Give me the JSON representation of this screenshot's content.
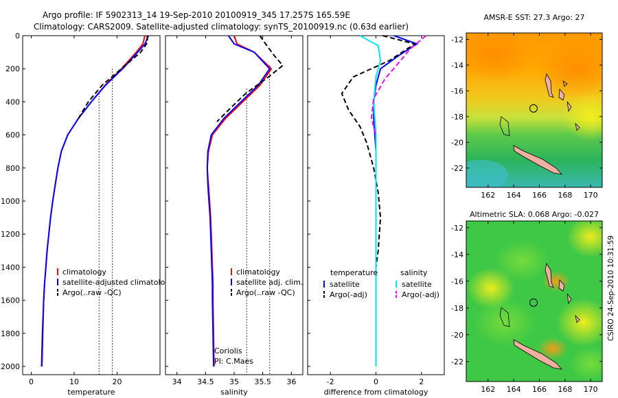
{
  "figure": {
    "title_line1": "Argo profile: IF 5902313_14 19-Sep-2010 20100919_345 17.257S 165.59E",
    "title_line2": "Climatology: CARS2009. Satellite-adjusted climatology: synTS_20100919.nc (0.63d earlier)",
    "institution_note": "CSIRO 24-Sep-2010 10:31:59",
    "colors": {
      "climatology": "#ff0000",
      "satellite": "#0000ff",
      "argo": "#000000",
      "salinity_satellite": "#00e5ee",
      "salinity_argo": "#ff00ff"
    }
  },
  "chart_data": [
    {
      "type": "line",
      "panel": "temperature",
      "xlabel": "temperature",
      "ylabel": "",
      "xlim": [
        -2,
        30
      ],
      "ylim": [
        2050,
        0
      ],
      "y_reversed": true,
      "xticks": [
        0,
        10,
        20
      ],
      "yticks": [
        0,
        200,
        400,
        600,
        800,
        1000,
        1200,
        1400,
        1600,
        1800,
        2000
      ],
      "legend": [
        "climatology",
        "satellite-adjusted climatology",
        "Argo(..raw -QC)"
      ],
      "legend_placement": "lower-right",
      "series": [
        {
          "name": "climatology",
          "color_key": "climatology",
          "style": "solid",
          "x": [
            26.5,
            26.0,
            24.5,
            21.0,
            17.2,
            14.0,
            11.0,
            8.5,
            7.0,
            6.2,
            5.6,
            5.0,
            4.5,
            4.1,
            3.7,
            3.4,
            3.1,
            2.9,
            2.7,
            2.5
          ],
          "y": [
            0,
            50,
            100,
            200,
            300,
            400,
            500,
            600,
            700,
            800,
            900,
            1000,
            1100,
            1200,
            1300,
            1400,
            1500,
            1600,
            1800,
            2000
          ]
        },
        {
          "name": "satellite-adjusted climatology",
          "color_key": "satellite",
          "style": "solid",
          "x": [
            27.3,
            26.5,
            24.8,
            21.3,
            17.3,
            14.0,
            11.0,
            8.5,
            7.0,
            6.2,
            5.6,
            5.0,
            4.5,
            4.1,
            3.7,
            3.4,
            3.1,
            2.9,
            2.6,
            2.4
          ],
          "y": [
            0,
            50,
            100,
            200,
            300,
            400,
            500,
            600,
            700,
            800,
            900,
            1000,
            1100,
            1200,
            1300,
            1400,
            1500,
            1600,
            1800,
            2000
          ]
        },
        {
          "name": "Argo(..raw -QC)",
          "color_key": "argo",
          "style": "dashed",
          "x": [
            27.0,
            27.1,
            25.5,
            21.0,
            16.5,
            13.3,
            11.0
          ],
          "y": [
            0,
            40,
            100,
            200,
            300,
            400,
            500
          ]
        }
      ],
      "reference_lines": [
        {
          "axis": "x",
          "value": 15.8,
          "style": "dotted",
          "y_from": 350,
          "y_to": 2050
        },
        {
          "axis": "x",
          "value": 18.9,
          "style": "dotted",
          "y_from": 200,
          "y_to": 2050
        }
      ],
      "reference_labels": []
    },
    {
      "type": "line",
      "panel": "salinity",
      "xlabel": "salinity",
      "xlim": [
        33.8,
        36.2
      ],
      "ylim": [
        2050,
        0
      ],
      "y_reversed": true,
      "xticks": [
        34,
        34.5,
        35,
        35.5,
        36
      ],
      "legend": [
        "climatology",
        "satellite adj. clim.",
        "Argo(..raw -QC)"
      ],
      "legend_placement": "lower-right",
      "series": [
        {
          "name": "climatology",
          "color_key": "climatology",
          "style": "solid",
          "x": [
            35.0,
            35.05,
            35.35,
            35.65,
            35.45,
            35.15,
            34.85,
            34.62,
            34.55,
            34.53,
            34.55,
            34.57,
            34.59,
            34.6,
            34.61,
            34.62,
            34.63,
            34.63,
            34.64,
            34.65
          ],
          "y": [
            0,
            50,
            100,
            200,
            300,
            400,
            500,
            600,
            700,
            800,
            900,
            1000,
            1100,
            1200,
            1300,
            1400,
            1500,
            1600,
            1800,
            2000
          ]
        },
        {
          "name": "satellite adj. clim.",
          "color_key": "satellite",
          "style": "solid",
          "x": [
            34.9,
            35.0,
            35.35,
            35.62,
            35.42,
            35.12,
            34.82,
            34.6,
            34.54,
            34.53,
            34.54,
            34.56,
            34.58,
            34.59,
            34.6,
            34.61,
            34.62,
            34.62,
            34.63,
            34.64
          ],
          "y": [
            0,
            50,
            100,
            200,
            300,
            400,
            500,
            600,
            700,
            800,
            900,
            1000,
            1100,
            1200,
            1300,
            1400,
            1500,
            1600,
            1800,
            2000
          ]
        },
        {
          "name": "Argo(..raw -QC)",
          "color_key": "argo",
          "style": "dashed",
          "x": [
            35.45,
            35.55,
            35.7,
            35.85,
            35.6,
            35.2,
            34.9,
            34.7
          ],
          "y": [
            0,
            50,
            120,
            180,
            250,
            350,
            450,
            520
          ]
        }
      ],
      "reference_lines": [
        {
          "axis": "x",
          "value": 35.22,
          "style": "dotted",
          "y_from": 320,
          "y_to": 2050
        },
        {
          "axis": "x",
          "value": 35.62,
          "style": "dotted",
          "y_from": 180,
          "y_to": 2050
        }
      ],
      "reference_labels": [
        "Coriolis",
        "PI: C.Maes"
      ]
    },
    {
      "type": "line",
      "panel": "difference",
      "xlabel": "difference from climatology",
      "xlim": [
        -3,
        3
      ],
      "ylim": [
        2050,
        0
      ],
      "y_reversed": true,
      "xticks": [
        -2,
        0,
        2
      ],
      "legend_groups": [
        {
          "title": "temperature",
          "items": [
            "satellite",
            "Argo(-adj)"
          ]
        },
        {
          "title": "salinity",
          "items": [
            "satellite",
            "Argo(-adj)"
          ]
        }
      ],
      "series": [
        {
          "name": "temperature satellite",
          "color_key": "satellite",
          "style": "solid",
          "x": [
            0.8,
            1.8,
            1.0,
            0.2,
            0.0,
            -0.1,
            -0.1,
            0.0,
            0.0,
            0.0,
            0.0
          ],
          "y": [
            0,
            50,
            120,
            200,
            300,
            400,
            500,
            700,
            900,
            1400,
            2000
          ]
        },
        {
          "name": "temperature Argo(-adj)",
          "color_key": "argo",
          "style": "dashed",
          "x": [
            0.3,
            1.7,
            0.6,
            -1.0,
            -1.5,
            -1.2,
            -0.7,
            -0.4,
            -0.1,
            0.1,
            0.2,
            0.1,
            0.0
          ],
          "y": [
            0,
            50,
            150,
            250,
            350,
            450,
            550,
            650,
            800,
            950,
            1100,
            1300,
            1400
          ]
        },
        {
          "name": "salinity satellite",
          "color_key": "salinity_satellite",
          "style": "solid",
          "x": [
            -0.7,
            0.1,
            0.2,
            0.0,
            -0.1,
            0.0,
            0.0,
            0.0,
            0.0
          ],
          "y": [
            0,
            60,
            150,
            250,
            400,
            600,
            1000,
            1500,
            2000
          ]
        },
        {
          "name": "salinity Argo(-adj)",
          "color_key": "salinity_argo",
          "style": "dashed",
          "x": [
            2.2,
            1.5,
            0.9,
            0.4,
            -0.1,
            -0.2,
            0.0
          ],
          "y": [
            0,
            80,
            180,
            260,
            380,
            500,
            600
          ]
        }
      ],
      "reference_lines": [],
      "reference_labels": []
    },
    {
      "type": "heatmap",
      "panel": "map_sst",
      "title": "AMSR-E SST: 27.3 Argo: 27",
      "xlim": [
        160.3,
        170.9
      ],
      "ylim": [
        -23.5,
        -11.5
      ],
      "xticks": [
        162,
        164,
        166,
        168,
        170
      ],
      "yticks": [
        -12,
        -14,
        -16,
        -18,
        -20,
        -22
      ],
      "float_position": {
        "lon": 165.59,
        "lat": -17.257
      }
    },
    {
      "type": "heatmap",
      "panel": "map_sla",
      "title": "Altimetric SLA: 0.068 Argo: -0.027",
      "xlim": [
        160.3,
        170.9
      ],
      "ylim": [
        -23.5,
        -11.5
      ],
      "xticks": [
        162,
        164,
        166,
        168,
        170
      ],
      "yticks": [
        -12,
        -14,
        -16,
        -18,
        -20,
        -22
      ],
      "float_position": {
        "lon": 165.59,
        "lat": -17.257
      }
    }
  ]
}
